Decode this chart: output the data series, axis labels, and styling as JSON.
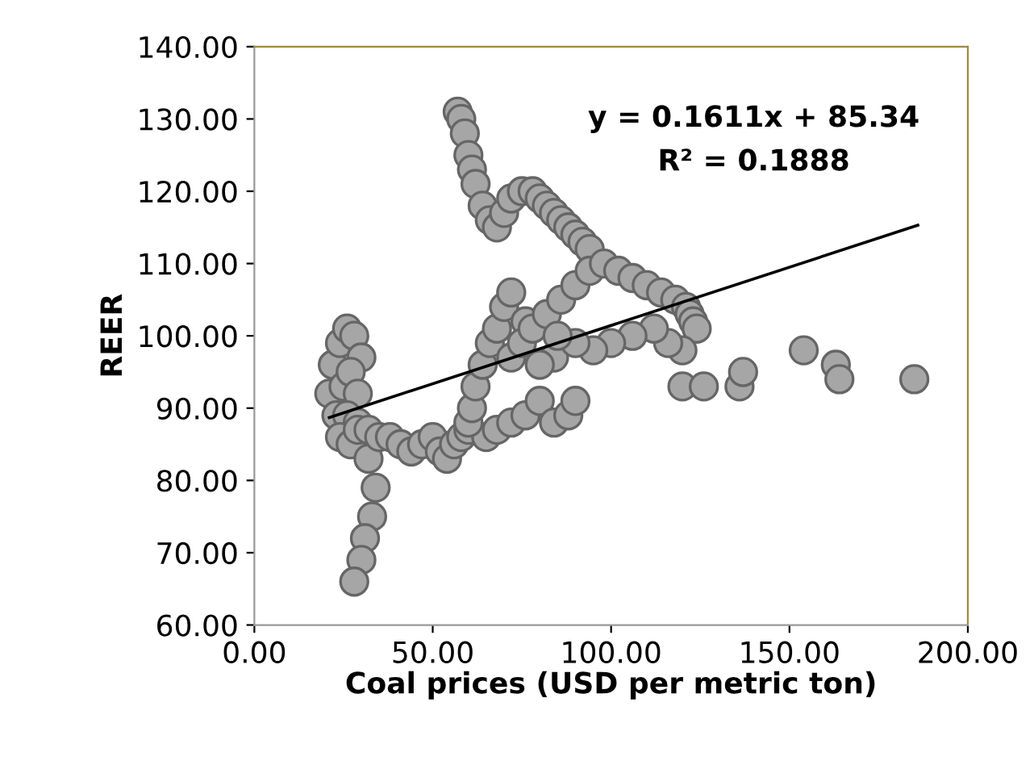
{
  "chart_data": {
    "type": "scatter",
    "xlabel": "Coal prices (USD per metric ton)",
    "ylabel": "REER",
    "xlim": [
      0,
      200
    ],
    "xticks": [
      {
        "value": 0,
        "label": "0.00"
      },
      {
        "value": 50,
        "label": "50.00"
      },
      {
        "value": 100,
        "label": "100.00"
      },
      {
        "value": 150,
        "label": "150.00"
      },
      {
        "value": 200,
        "label": "200.00"
      }
    ],
    "ylim": [
      60,
      140
    ],
    "yticks": [
      {
        "value": 60,
        "label": "60.00"
      },
      {
        "value": 70,
        "label": "70.00"
      },
      {
        "value": 80,
        "label": "80.00"
      },
      {
        "value": 90,
        "label": "90.00"
      },
      {
        "value": 100,
        "label": "100.00"
      },
      {
        "value": 110,
        "label": "110.00"
      },
      {
        "value": 120,
        "label": "120.00"
      },
      {
        "value": 130,
        "label": "130.00"
      },
      {
        "value": 140,
        "label": "140.00"
      }
    ],
    "grid": false,
    "legend": false,
    "marker": "circle",
    "annotations": [
      "y = 0.1611x + 85.34",
      "R² = 0.1888"
    ],
    "series": [
      {
        "color": "#a6a6a6",
        "x": [
          21,
          22,
          24,
          26,
          28,
          30,
          25,
          27,
          29,
          23,
          26,
          29,
          24,
          27,
          32,
          34,
          33,
          31,
          30,
          28,
          29,
          32,
          35,
          38,
          41,
          44,
          47,
          50,
          52,
          54,
          56,
          58,
          60,
          65,
          68,
          72,
          76,
          80,
          84,
          88,
          90,
          60,
          61,
          62,
          64,
          66,
          68,
          70,
          72,
          76,
          84,
          57,
          58,
          59,
          60,
          61,
          62,
          64,
          66,
          68,
          70,
          72,
          75,
          78,
          80,
          82,
          84,
          86,
          88,
          90,
          92,
          94,
          72,
          75,
          78,
          82,
          86,
          90,
          94,
          98,
          102,
          106,
          110,
          114,
          118,
          121,
          122,
          123,
          124,
          120,
          116,
          112,
          106,
          100,
          95,
          90,
          85,
          80,
          120,
          126,
          136,
          137,
          154,
          163,
          164,
          185
        ],
        "values": [
          92,
          96,
          99,
          101,
          100,
          97,
          93,
          95,
          92,
          89,
          89,
          88,
          86,
          85,
          83,
          79,
          75,
          72,
          69,
          66,
          87,
          87,
          86,
          86,
          85,
          84,
          85,
          86,
          84,
          83,
          85,
          86,
          87,
          86,
          87,
          88,
          89,
          91,
          88,
          89,
          91,
          88,
          90,
          93,
          96,
          99,
          101,
          104,
          106,
          102,
          97,
          131,
          130,
          128,
          125,
          123,
          121,
          118,
          116,
          115,
          117,
          119,
          120,
          120,
          119,
          118,
          117,
          116,
          115,
          114,
          113,
          112,
          97,
          99,
          101,
          103,
          105,
          107,
          109,
          110,
          109,
          108,
          107,
          106,
          105,
          104,
          103,
          102,
          101,
          98,
          99,
          101,
          100,
          99,
          98,
          99,
          100,
          96,
          93,
          93,
          93,
          95,
          98,
          96,
          94,
          94
        ]
      },
      {
        "type": "line",
        "marker": "none",
        "color": "#000000",
        "x": [
          21,
          186
        ],
        "values": [
          88.7,
          115.3
        ]
      }
    ]
  }
}
